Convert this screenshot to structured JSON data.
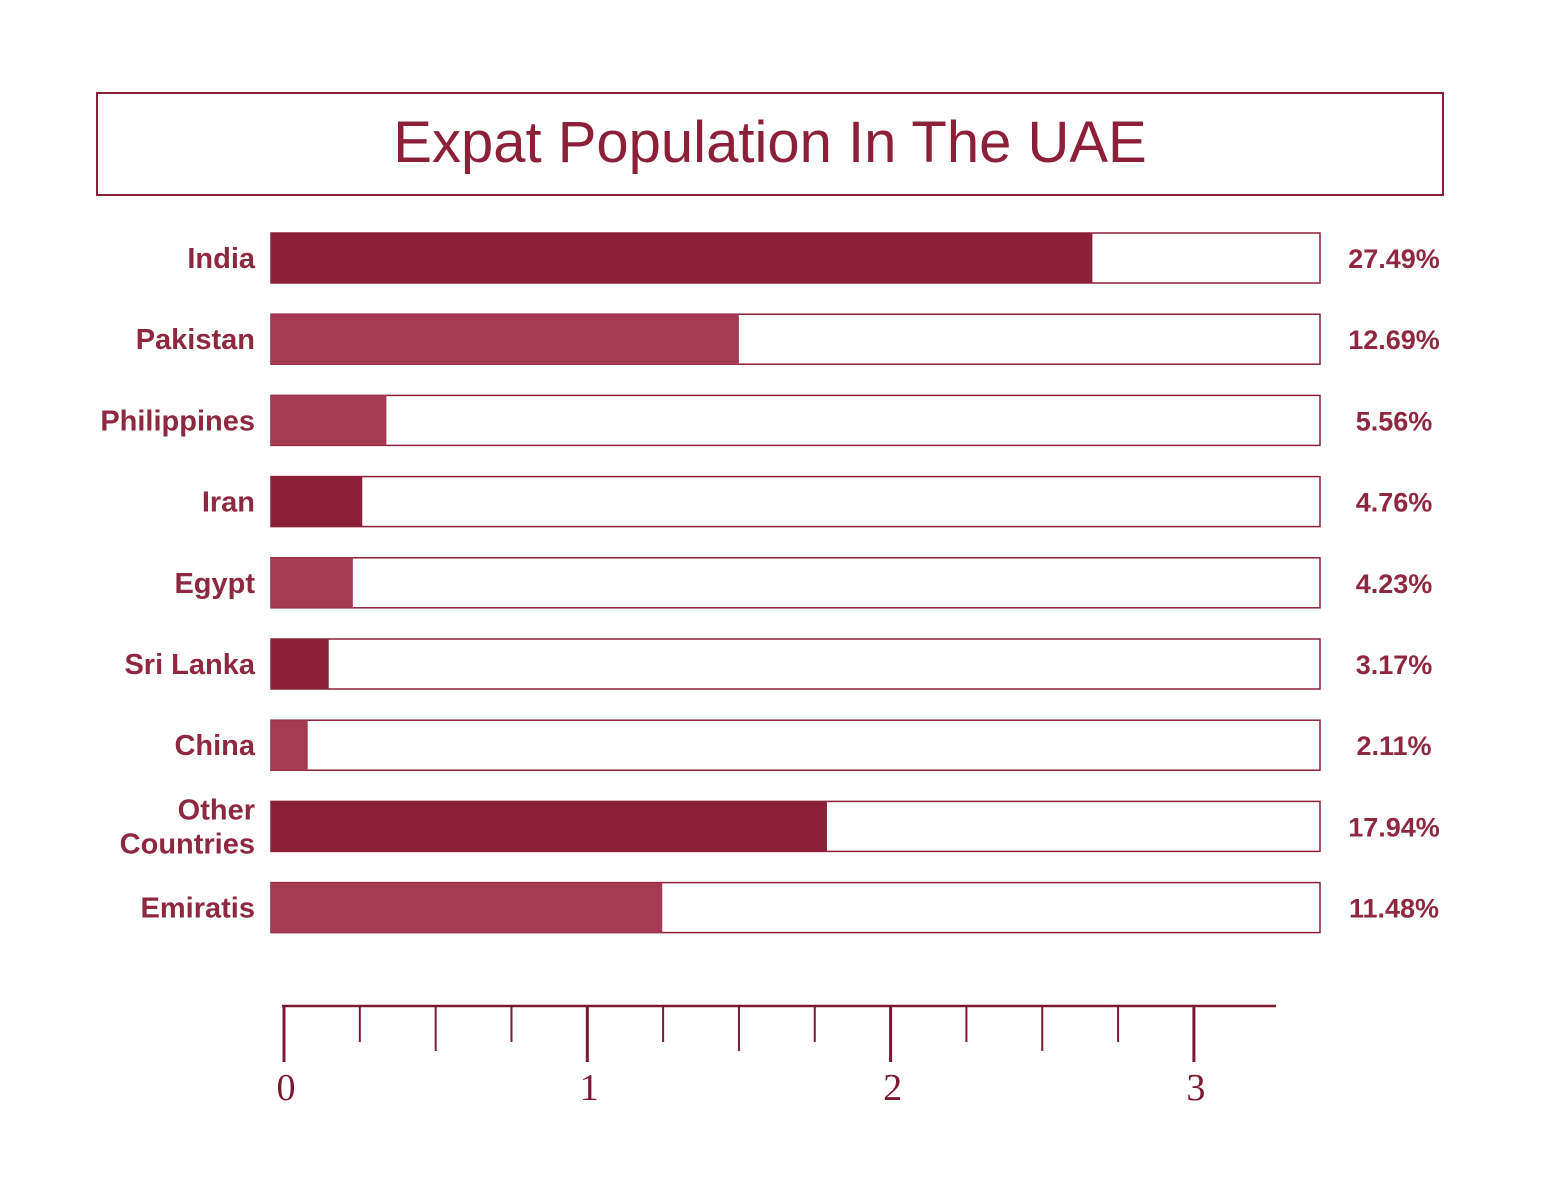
{
  "chart_data": {
    "type": "bar",
    "orientation": "horizontal",
    "title": "Expat Population In The UAE",
    "categories": [
      "India",
      "Pakistan",
      "Philippines",
      "Iran",
      "Egypt",
      "Sri Lanka",
      "China",
      "Other Countries",
      "Emiratis"
    ],
    "category_lines": [
      [
        "India"
      ],
      [
        "Pakistan"
      ],
      [
        "Philippines"
      ],
      [
        "Iran"
      ],
      [
        "Egypt"
      ],
      [
        "Sri Lanka"
      ],
      [
        "China"
      ],
      [
        "Other",
        "Countries"
      ],
      [
        "Emiratis"
      ]
    ],
    "series": [
      {
        "values": [
          27.49,
          12.69,
          5.56,
          4.76,
          4.23,
          3.17,
          2.11,
          17.94,
          11.48
        ],
        "labels": [
          "27.49%",
          "12.69%",
          "5.56%",
          "4.76%",
          "4.23%",
          "3.17%",
          "2.11%",
          "17.94%",
          "11.48%"
        ],
        "shades": [
          "dark",
          "light",
          "light",
          "dark",
          "light",
          "dark",
          "light",
          "dark",
          "light"
        ]
      }
    ],
    "fill_fractions": [
      0.783,
      0.446,
      0.11,
      0.087,
      0.078,
      0.055,
      0.035,
      0.53,
      0.373
    ],
    "axis_ticks": [
      "0",
      "1",
      "2",
      "3"
    ],
    "legend": "none",
    "grid": false
  },
  "colors": {
    "dark": "#8b2038",
    "light": "#a53a53",
    "text": "#8e2841",
    "frame": "#8b2038",
    "ruler": "#7a1a31"
  }
}
